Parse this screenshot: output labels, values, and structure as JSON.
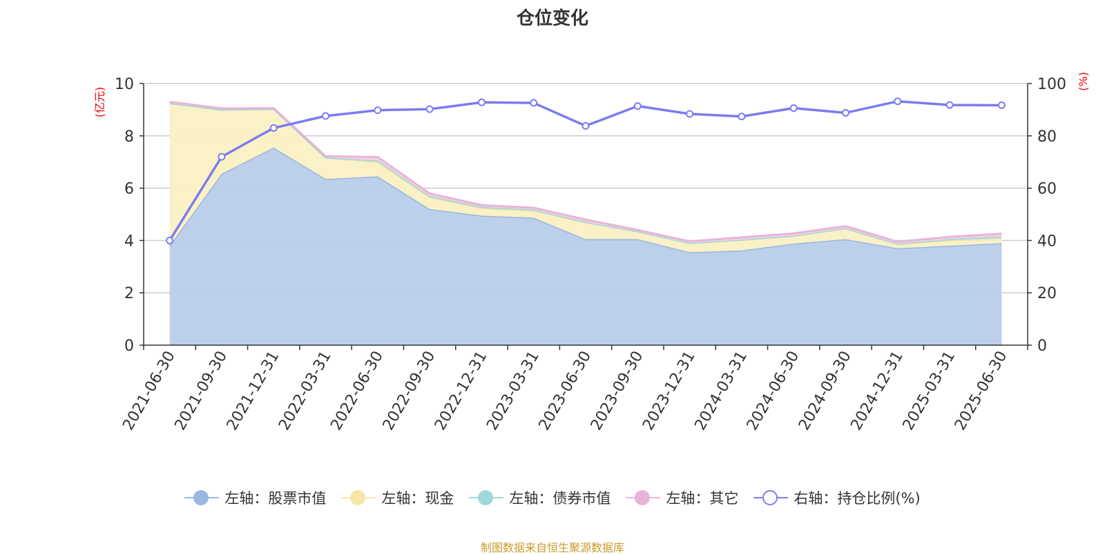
{
  "chart_data": {
    "type": "area",
    "title": "仓位变化",
    "categories": [
      "2021-06-30",
      "2021-09-30",
      "2021-12-31",
      "2022-03-31",
      "2022-06-30",
      "2022-09-30",
      "2022-12-31",
      "2023-03-31",
      "2023-06-30",
      "2023-09-30",
      "2023-12-31",
      "2024-03-31",
      "2024-06-30",
      "2024-09-30",
      "2024-12-31",
      "2025-03-31",
      "2025-06-30"
    ],
    "y_left": {
      "label": "(亿元)",
      "ylim": [
        0,
        10
      ],
      "ticks": [
        0,
        2,
        4,
        6,
        8,
        10
      ]
    },
    "y_right": {
      "label": "(%)",
      "ylim": [
        0,
        100
      ],
      "ticks": [
        0,
        20,
        40,
        60,
        80,
        100
      ]
    },
    "series": [
      {
        "name": "左轴：股票市值",
        "axis": "left",
        "type": "area",
        "color": "#9ab7e0",
        "fill": "#b9cdea",
        "values": [
          3.8,
          6.55,
          7.55,
          6.35,
          6.45,
          5.2,
          4.95,
          4.87,
          4.05,
          4.05,
          3.55,
          3.62,
          3.88,
          4.05,
          3.7,
          3.8,
          3.9
        ]
      },
      {
        "name": "左轴：现金",
        "axis": "left",
        "type": "area",
        "color": "#f5e6a5",
        "fill": "#fbf0c4",
        "values": [
          5.45,
          2.45,
          1.48,
          0.82,
          0.55,
          0.45,
          0.28,
          0.27,
          0.65,
          0.3,
          0.35,
          0.41,
          0.3,
          0.42,
          0.17,
          0.2,
          0.18
        ]
      },
      {
        "name": "左轴：债券市值",
        "axis": "left",
        "type": "area",
        "color": "#9fd8d8",
        "fill": "#bfe6e6",
        "values": [
          0,
          0,
          0,
          0,
          0.05,
          0.05,
          0.05,
          0.04,
          0,
          0,
          0,
          0,
          0,
          0,
          0,
          0.05,
          0.07
        ]
      },
      {
        "name": "左轴：其它",
        "axis": "left",
        "type": "area",
        "color": "#e8b4d8",
        "fill": "#f2d2e7",
        "values": [
          0.05,
          0.05,
          0.03,
          0.05,
          0.14,
          0.1,
          0.07,
          0.07,
          0.1,
          0.05,
          0.07,
          0.09,
          0.09,
          0.08,
          0.08,
          0.09,
          0.11
        ]
      },
      {
        "name": "右轴：持仓比例(%)",
        "axis": "right",
        "type": "line",
        "color": "#7b7cf0",
        "values": [
          40,
          72,
          83,
          87.6,
          89.8,
          90.2,
          92.8,
          92.6,
          83.8,
          91.4,
          88.4,
          87.4,
          90.6,
          88.8,
          93.2,
          91.8,
          91.7
        ]
      }
    ],
    "grid": true,
    "legend_position": "bottom"
  },
  "source_note": "制图数据来自恒生聚源数据库"
}
